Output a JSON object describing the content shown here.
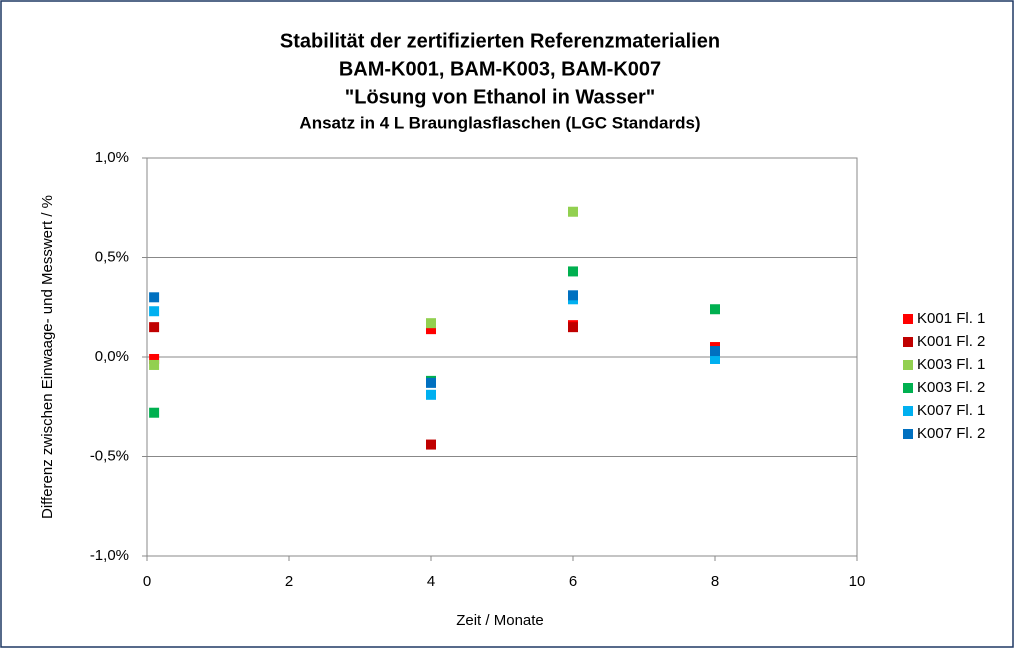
{
  "chart_data": {
    "type": "scatter",
    "title": [
      "Stabilität der zertifizierten Referenzmaterialien",
      "BAM-K001, BAM-K003, BAM-K007",
      "\"Lösung von Ethanol in Wasser\"",
      "Ansatz in 4 L Braunglasflaschen (LGC Standards)"
    ],
    "x_label": "Zeit / Monate",
    "y_label": "Differenz zwischen Einwaage- und Messwert / %",
    "x": [
      0.1,
      4,
      6,
      8
    ],
    "series": [
      {
        "name": "K001 Fl. 1",
        "color": "#ff0000",
        "values": [
          -0.01,
          0.14,
          0.16,
          0.05
        ]
      },
      {
        "name": "K001 Fl. 2",
        "color": "#c00000",
        "values": [
          0.15,
          -0.44,
          0.15,
          0.03
        ]
      },
      {
        "name": "K003 Fl. 1",
        "color": "#92d050",
        "values": [
          -0.04,
          0.17,
          0.73,
          null
        ]
      },
      {
        "name": "K003 Fl. 2",
        "color": "#00b050",
        "values": [
          -0.28,
          -0.12,
          0.43,
          0.24
        ]
      },
      {
        "name": "K007 Fl. 1",
        "color": "#00b0f0",
        "values": [
          0.23,
          -0.19,
          0.29,
          -0.01
        ]
      },
      {
        "name": "K007 Fl. 2",
        "color": "#0070c0",
        "values": [
          0.3,
          -0.13,
          0.31,
          0.03
        ]
      }
    ],
    "xlim": [
      0,
      10
    ],
    "xticks": [
      0,
      2,
      4,
      6,
      8,
      10
    ],
    "ylim": [
      -1.0,
      1.0
    ],
    "yticks": [
      {
        "value": -1.0,
        "label": "-1,0%"
      },
      {
        "value": -0.5,
        "label": "-0,5%"
      },
      {
        "value": 0.0,
        "label": "0,0%"
      },
      {
        "value": 0.5,
        "label": "0,5%"
      },
      {
        "value": 1.0,
        "label": "1,0%"
      }
    ],
    "grid": true,
    "legend": "right"
  }
}
